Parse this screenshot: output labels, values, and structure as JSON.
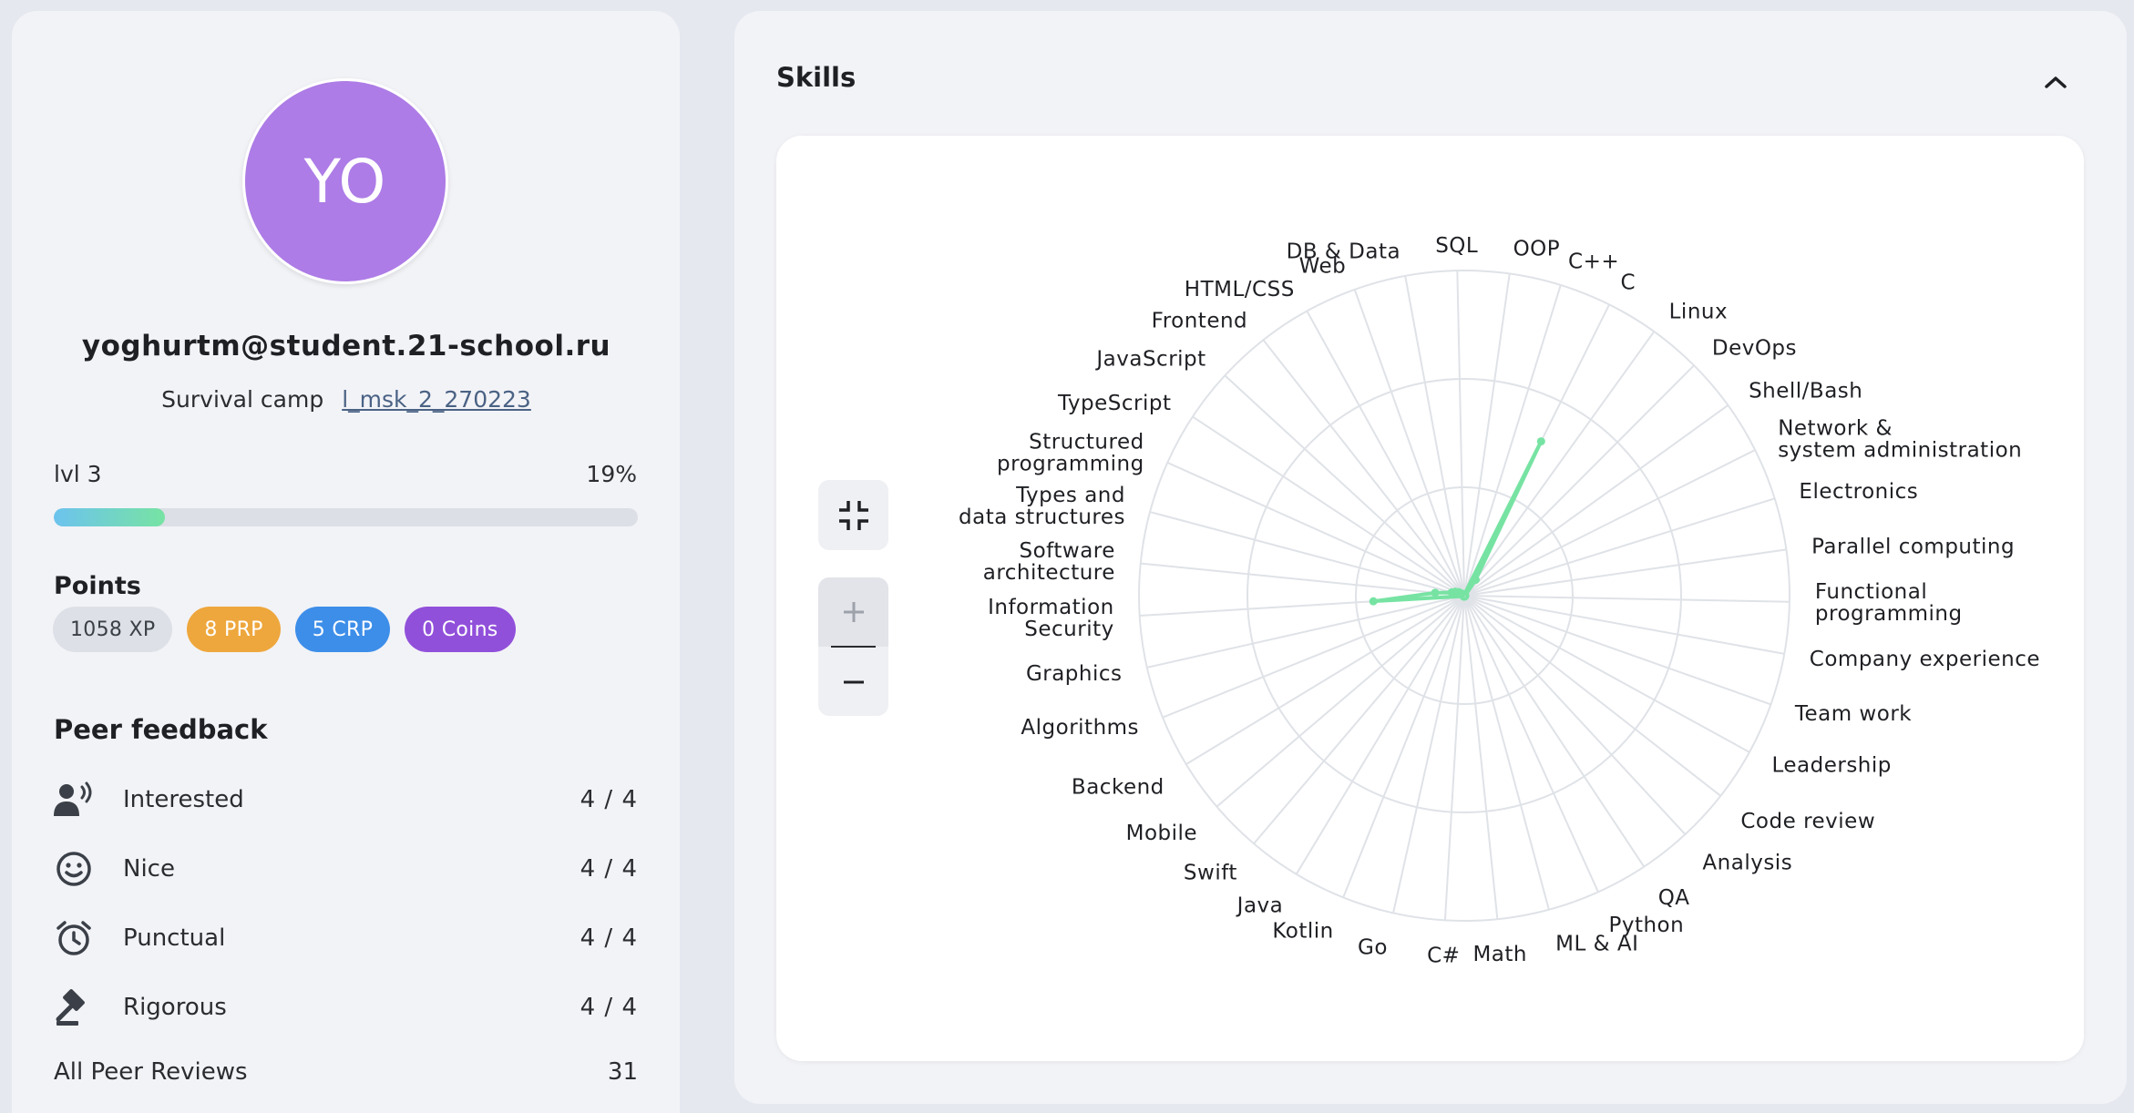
{
  "profile": {
    "avatar_initials": "YO",
    "email": "yoghurtm@student.21-school.ru",
    "campus_label": "Survival camp",
    "wave": "l_msk_2_270223",
    "level_label": "lvl 3",
    "level_percent_label": "19%",
    "level_progress": 0.19
  },
  "points": {
    "title": "Points",
    "xp": "1058 XP",
    "prp": "8 PRP",
    "crp": "5 CRP",
    "coins": "0 Coins"
  },
  "feedback": {
    "title": "Peer feedback",
    "items": [
      {
        "label": "Interested",
        "value": "4 / 4",
        "icon": "interested-icon"
      },
      {
        "label": "Nice",
        "value": "4 / 4",
        "icon": "smile-icon"
      },
      {
        "label": "Punctual",
        "value": "4 / 4",
        "icon": "alarm-clock-icon"
      },
      {
        "label": "Rigorous",
        "value": "4 / 4",
        "icon": "gavel-icon"
      }
    ],
    "all_reviews_label": "All Peer Reviews",
    "all_reviews_value": "31"
  },
  "skills_panel": {
    "title": "Skills",
    "collapse_icon": "chevron-up-icon",
    "fit_icon": "collapse-arrows-icon",
    "zoom_in_icon": "plus-icon",
    "zoom_out_icon": "minus-icon"
  },
  "colors": {
    "accent_green": "#77e3a3",
    "avatar_purple": "#ad7ce6",
    "prp_orange": "#eea73c",
    "crp_blue": "#3d8ee9",
    "coins_purple": "#9150da"
  },
  "chart_data": {
    "type": "radar",
    "axes": [
      "OOP",
      "C++",
      "C",
      "Linux",
      "DevOps",
      "Shell/Bash",
      "Network & system administration",
      "Electronics",
      "Parallel computing",
      "Functional programming",
      "Company experience",
      "Team work",
      "Leadership",
      "Code review",
      "Analysis",
      "QA",
      "Python",
      "ML & AI",
      "Math",
      "C#",
      "Go",
      "Kotlin",
      "Java",
      "Swift",
      "Mobile",
      "Backend",
      "Algorithms",
      "Graphics",
      "Information Security",
      "Software architecture",
      "Types and data structures",
      "Structured programming",
      "TypeScript",
      "JavaScript",
      "Frontend",
      "HTML/CSS",
      "Web",
      "DB & Data",
      "SQL"
    ],
    "values": [
      0,
      0,
      0.53,
      0.06,
      0,
      0,
      0,
      0,
      0,
      0,
      0,
      0,
      0,
      0,
      0,
      0,
      0,
      0,
      0,
      0,
      0,
      0,
      0,
      0,
      0,
      0,
      0,
      0,
      0.28,
      0.09,
      0.04,
      0.03,
      0.02,
      0.01,
      0,
      0,
      0,
      0,
      0
    ],
    "rings": 3,
    "grid": true
  }
}
